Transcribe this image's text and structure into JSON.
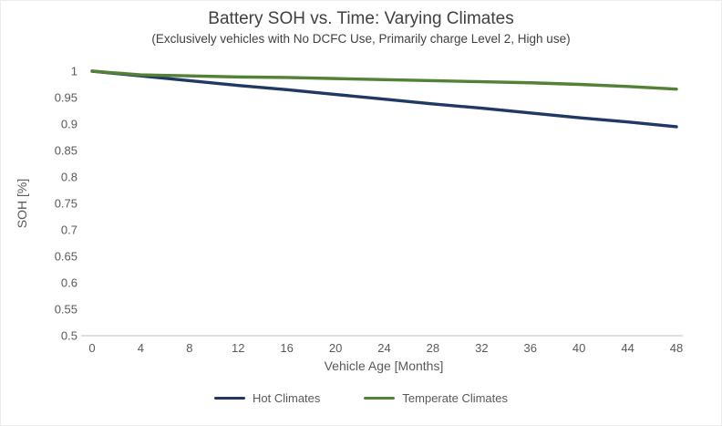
{
  "title": "Battery SOH vs. Time: Varying Climates",
  "subtitle": "(Exclusively vehicles with No DCFC Use, Primarily charge Level 2, High use)",
  "colors": {
    "hot_climates": "#1F3864",
    "temperate_climates": "#538135",
    "axis_text": "#595959",
    "axis_line": "#BFBFBF",
    "title_text": "#404040"
  },
  "chart_data": {
    "type": "line",
    "title": "Battery SOH vs. Time: Varying Climates",
    "subtitle": "(Exclusively vehicles with No DCFC Use, Primarily charge Level 2, High use)",
    "xlabel": "Vehicle Age [Months]",
    "ylabel": "SOH [%]",
    "xlim": [
      0,
      48
    ],
    "ylim": [
      0.5,
      1.0
    ],
    "xticks": [
      0,
      4,
      8,
      12,
      16,
      20,
      24,
      28,
      32,
      36,
      40,
      44,
      48
    ],
    "yticks": [
      0.5,
      0.55,
      0.6,
      0.65,
      0.7,
      0.75,
      0.8,
      0.85,
      0.9,
      0.95,
      1
    ],
    "grid": false,
    "legend_position": "bottom",
    "x": [
      0,
      4,
      8,
      12,
      16,
      20,
      24,
      28,
      32,
      36,
      40,
      44,
      48
    ],
    "series": [
      {
        "name": "Hot Climates",
        "color": "#1F3864",
        "values": [
          1.0,
          0.991,
          0.982,
          0.973,
          0.965,
          0.956,
          0.947,
          0.938,
          0.93,
          0.921,
          0.912,
          0.904,
          0.895
        ]
      },
      {
        "name": "Temperate Climates",
        "color": "#538135",
        "values": [
          1.0,
          0.993,
          0.991,
          0.989,
          0.988,
          0.986,
          0.984,
          0.982,
          0.98,
          0.978,
          0.975,
          0.971,
          0.966
        ]
      }
    ]
  }
}
